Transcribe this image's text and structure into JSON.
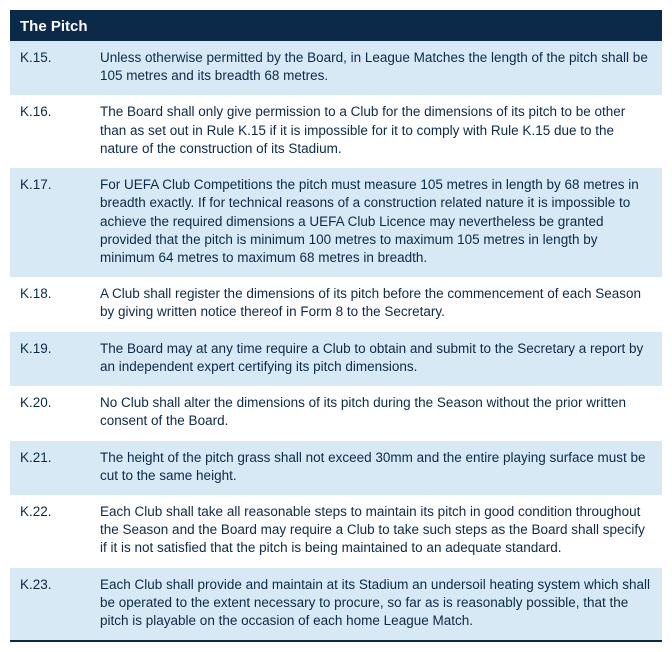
{
  "section": {
    "title": "The Pitch"
  },
  "colors": {
    "header_bg": "#0b2a4a",
    "header_text": "#ffffff",
    "row_alt_bg": "#d6e9f5",
    "row_bg": "#ffffff",
    "text": "#0b2a4a"
  },
  "rules": [
    {
      "num": "K.15.",
      "text": "Unless otherwise permitted by the Board, in League Matches the length of the pitch shall be 105 metres and its breadth 68 metres."
    },
    {
      "num": "K.16.",
      "text": "The Board shall only give permission to a Club for the dimensions of its pitch to be other than as set out in Rule K.15 if it is impossible for it to comply with Rule K.15 due to the nature of the construction of its Stadium."
    },
    {
      "num": "K.17.",
      "text": "For UEFA Club Competitions the pitch must measure 105 metres in length by 68 metres in breadth exactly. If for technical reasons of a construction related nature it is impossible to achieve the required dimensions a UEFA Club Licence may nevertheless be granted provided that the pitch is minimum 100 metres to maximum 105 metres in length by minimum 64 metres to maximum 68 metres in breadth."
    },
    {
      "num": "K.18.",
      "text": "A Club shall register the dimensions of its pitch before the commencement of each Season by giving written notice thereof in Form 8 to the Secretary."
    },
    {
      "num": "K.19.",
      "text": "The Board may at any time require a Club to obtain and submit to the Secretary a report by an independent expert certifying its pitch dimensions."
    },
    {
      "num": "K.20.",
      "text": "No Club shall alter the dimensions of its pitch during the Season without the prior written consent of the Board."
    },
    {
      "num": "K.21.",
      "text": "The height of the pitch grass shall not exceed 30mm and the entire playing surface must be cut to the same height."
    },
    {
      "num": "K.22.",
      "text": "Each Club shall take all reasonable steps to maintain its pitch in good condition throughout the Season and the Board may require a Club to take such steps as the Board shall specify if it is not satisfied that the pitch is being maintained to an adequate standard."
    },
    {
      "num": "K.23.",
      "text": "Each Club shall provide and maintain at its Stadium an undersoil heating system which shall be operated to the extent necessary to procure, so far as is reasonably possible, that the pitch is playable on the occasion of each home League Match."
    }
  ]
}
